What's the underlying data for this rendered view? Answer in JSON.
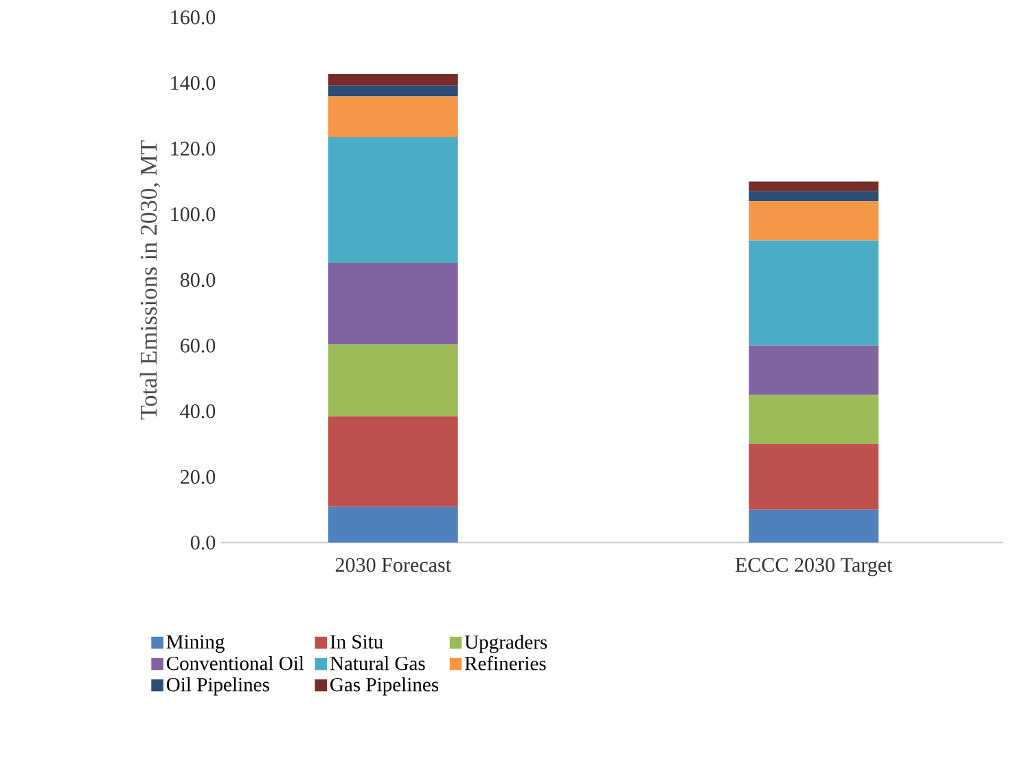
{
  "chart_data": {
    "type": "bar",
    "stacked": true,
    "ylabel": "Total Emissions in 2030, MT",
    "categories": [
      "2030 Forecast",
      "ECCC 2030 Target"
    ],
    "series": [
      {
        "name": "Mining",
        "color": "#4f81bd",
        "values": [
          10.9,
          10
        ]
      },
      {
        "name": "In Situ",
        "color": "#c0504d",
        "values": [
          27.6,
          20
        ]
      },
      {
        "name": "Upgraders",
        "color": "#9bbb59",
        "values": [
          21.9,
          15
        ]
      },
      {
        "name": "Conventional Oil",
        "color": "#8064a2",
        "values": [
          24.8,
          15
        ]
      },
      {
        "name": "Natural Gas",
        "color": "#4bacc6",
        "values": [
          38.3,
          32
        ]
      },
      {
        "name": "Refineries",
        "color": "#f79646",
        "values": [
          12.4,
          12
        ]
      },
      {
        "name": "Oil Pipelines",
        "color": "#2c4d75",
        "values": [
          3.3,
          3
        ]
      },
      {
        "name": "Gas Pipelines",
        "color": "#772c2a",
        "values": [
          3.5,
          3
        ]
      }
    ],
    "ylim": [
      0,
      160
    ],
    "yticks": [
      {
        "value": 0,
        "label": "0.0"
      },
      {
        "value": 20,
        "label": "20.0"
      },
      {
        "value": 40,
        "label": "40.0"
      },
      {
        "value": 60,
        "label": "60.0"
      },
      {
        "value": 80,
        "label": "80.0"
      },
      {
        "value": 100,
        "label": "100.0"
      },
      {
        "value": 120,
        "label": "120.0"
      },
      {
        "value": 140,
        "label": "140.0"
      },
      {
        "value": 160,
        "label": "160.0"
      }
    ],
    "legend": "bottom"
  }
}
